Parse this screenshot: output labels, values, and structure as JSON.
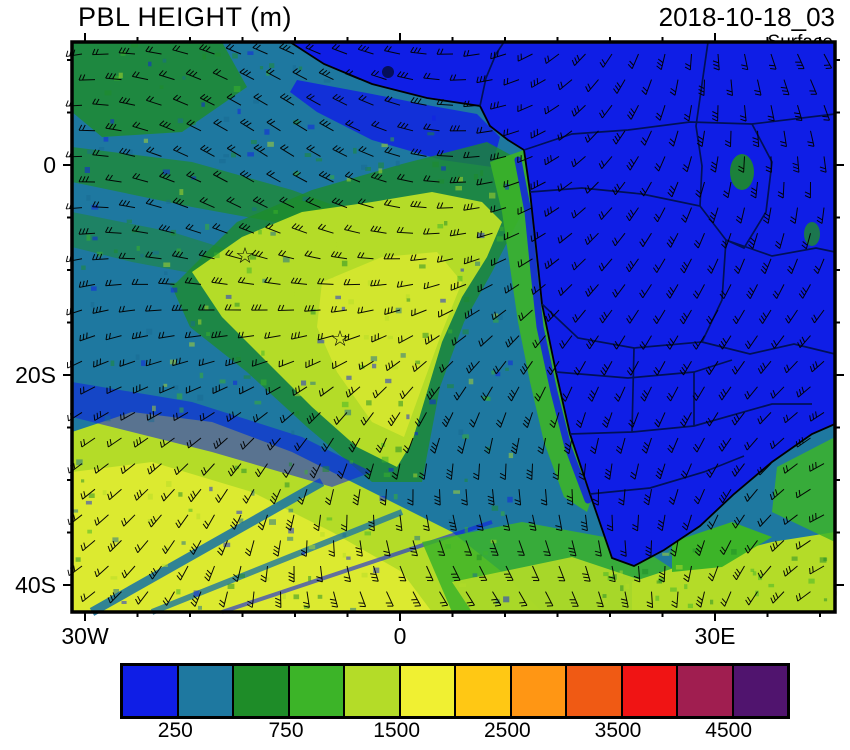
{
  "header": {
    "title": "PBL HEIGHT (m)",
    "datetime": "2018-10-18_03",
    "level": "Surface"
  },
  "axes": {
    "y_ticks": [
      "0",
      "20S",
      "40S"
    ],
    "x_ticks": [
      "30W",
      "0",
      "30E"
    ]
  },
  "colorbar": {
    "labels": [
      "250",
      "750",
      "1500",
      "2500",
      "3500",
      "4500"
    ],
    "colors": [
      "#0f1ee6",
      "#1e78a0",
      "#1e8c28",
      "#3cb428",
      "#b4dc28",
      "#f0f032",
      "#ffc814",
      "#ff9614",
      "#f05a14",
      "#f01414",
      "#a01e50",
      "#50146e"
    ]
  },
  "markers": [
    {
      "glyph": "☆",
      "approx_lon": "15W",
      "approx_lat": "9S"
    },
    {
      "glyph": "☆",
      "approx_lon": "6W",
      "approx_lat": "16S"
    }
  ],
  "chart_data": {
    "type": "heatmap",
    "title": "PBL HEIGHT (m)",
    "datetime": "2018-10-18_03",
    "level": "Surface",
    "projection": "lat-lon map of the South Atlantic and southern Africa",
    "lon_axis": {
      "tick_labels": [
        "30W",
        "0",
        "30E"
      ],
      "minor_tick_interval_deg": 5
    },
    "lat_axis": {
      "tick_labels": [
        "0",
        "20S",
        "40S"
      ],
      "minor_tick_interval_deg": 5
    },
    "colorbar": {
      "units": "m",
      "levels": [
        0,
        250,
        500,
        750,
        1000,
        1500,
        2000,
        2500,
        3000,
        3500,
        4000,
        4500,
        5000
      ],
      "labeled_levels": [
        250,
        750,
        1500,
        2500,
        3500,
        4500
      ],
      "colors": [
        "#0f1ee6",
        "#1e78a0",
        "#1e8c28",
        "#3cb428",
        "#b4dc28",
        "#f0f032",
        "#ffc814",
        "#ff9614",
        "#f05a14",
        "#f01414",
        "#a01e50",
        "#50146e"
      ]
    },
    "overlays": [
      "wind barbs at every grid point",
      "coastlines",
      "country borders",
      "two star station markers"
    ],
    "features": [
      "PBL height below 250 m (blue) over nearly all of continental central and southern Africa (03 UTC, nighttime)",
      "750-1500 m (green to yellow-green) plume over the central tropical South Atlantic roughly 5S-25S, 20W-0",
      "1000-2000 m (yellow-green) band across the far southwestern ocean around 30S-40S",
      "narrow sub-250 m filaments along the Benguela coastal strip off Namibia/Angola",
      "250-750 m (teal) over the Gulf of Guinea and northwestern map area",
      "green-yellow patches over the ocean south and southeast of the Cape of Good Hope"
    ],
    "markers": [
      {
        "symbol": "star",
        "approx_lon": "15W",
        "approx_lat": "9S"
      },
      {
        "symbol": "star",
        "approx_lon": "6W",
        "approx_lat": "16S"
      }
    ]
  }
}
